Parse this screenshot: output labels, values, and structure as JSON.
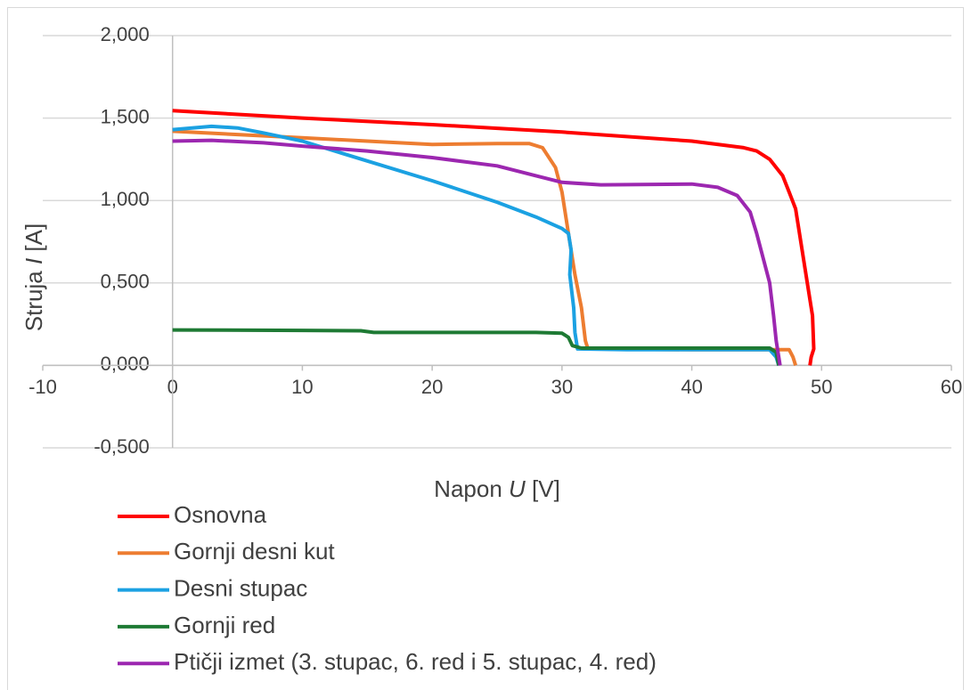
{
  "chart_data": {
    "type": "line",
    "x_label": "Napon U [V]",
    "y_label": "Struja I [A]",
    "xlim": [
      -10,
      60
    ],
    "xticks": [
      -10,
      0,
      10,
      20,
      30,
      40,
      50,
      60
    ],
    "ylim": [
      -0.5,
      2
    ],
    "yticks": [
      {
        "value": -0.5,
        "label": "-0,500"
      },
      {
        "value": 0,
        "label": "0,000"
      },
      {
        "value": 0.5,
        "label": "0,500"
      },
      {
        "value": 1,
        "label": "1,000"
      },
      {
        "value": 1.5,
        "label": "1,500"
      },
      {
        "value": 2,
        "label": "2,000"
      }
    ],
    "grid": true,
    "legend": "bottom",
    "series": [
      {
        "name": "Osnovna",
        "color": "#ff0000",
        "x": [
          0,
          10,
          20,
          30,
          40,
          44,
          45,
          46,
          47,
          47.5,
          48,
          48.5,
          49,
          49.3,
          49.4,
          49.2,
          49.1
        ],
        "values": [
          1.545,
          1.5,
          1.46,
          1.415,
          1.36,
          1.32,
          1.3,
          1.25,
          1.15,
          1.05,
          0.95,
          0.7,
          0.45,
          0.3,
          0.1,
          0.05,
          0
        ]
      },
      {
        "name": "Gornji desni kut",
        "color": "#ed7d31",
        "x": [
          0,
          5,
          10,
          15,
          20,
          25,
          27.5,
          28.5,
          29.5,
          30,
          30.5,
          31,
          31.5,
          31.8,
          32,
          40,
          46,
          47.5,
          47.8,
          48
        ],
        "values": [
          1.42,
          1.4,
          1.38,
          1.36,
          1.34,
          1.345,
          1.345,
          1.32,
          1.2,
          1.05,
          0.8,
          0.55,
          0.35,
          0.15,
          0.1,
          0.095,
          0.095,
          0.095,
          0.05,
          0
        ]
      },
      {
        "name": "Desni stupac",
        "color": "#1ba1e2",
        "x": [
          0,
          3,
          5,
          7,
          10,
          15,
          20,
          25,
          28,
          30,
          30.5,
          30.7,
          30.6,
          30.9,
          31,
          31.2,
          35,
          46,
          46.5,
          46.7
        ],
        "values": [
          1.43,
          1.45,
          1.44,
          1.41,
          1.36,
          1.24,
          1.12,
          0.99,
          0.9,
          0.83,
          0.8,
          0.7,
          0.55,
          0.35,
          0.2,
          0.1,
          0.095,
          0.095,
          0.05,
          0
        ]
      },
      {
        "name": "Gornji red",
        "color": "#1e7a34",
        "x": [
          0,
          10,
          14.5,
          15.5,
          20,
          28,
          30,
          30.5,
          30.8,
          31.5,
          40,
          46,
          46.5,
          46.7
        ],
        "values": [
          0.215,
          0.212,
          0.21,
          0.2,
          0.2,
          0.2,
          0.195,
          0.17,
          0.12,
          0.105,
          0.105,
          0.105,
          0.08,
          0
        ]
      },
      {
        "name": "Ptičji izmet (3. stupac, 6. red i 5. stupac, 4. red)",
        "color": "#9c27b0",
        "x": [
          0,
          3,
          7,
          10,
          15,
          20,
          25,
          28,
          30,
          33,
          40,
          42,
          43.5,
          44.5,
          45,
          45.5,
          46,
          46.3,
          46.5,
          46.7,
          46.8
        ],
        "values": [
          1.36,
          1.365,
          1.35,
          1.33,
          1.3,
          1.26,
          1.21,
          1.15,
          1.11,
          1.095,
          1.1,
          1.08,
          1.03,
          0.93,
          0.8,
          0.65,
          0.5,
          0.3,
          0.15,
          0.05,
          0
        ]
      }
    ]
  }
}
